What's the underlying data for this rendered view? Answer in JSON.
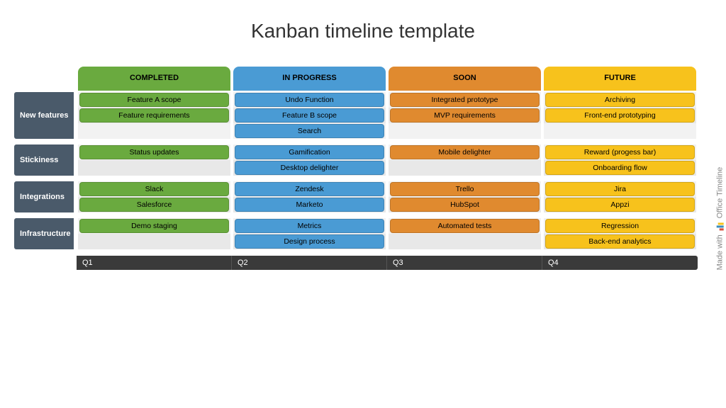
{
  "title": "Kanban timeline template",
  "colors": {
    "completed": "#6aaa3f",
    "in_progress": "#4a9bd4",
    "soon": "#e08a2f",
    "future": "#f7c21c",
    "row_label_bg": "#4a5a6a",
    "row_label_fg": "#ffffff",
    "stripe_even": "#f2f2f2",
    "stripe_odd": "#e8e8e8",
    "quarter_bg": "#3a3a3a",
    "quarter_fg": "#ffffff",
    "page_bg": "#ffffff",
    "title_color": "#333333",
    "task_text": "#000000"
  },
  "typography": {
    "title_fontsize": 28,
    "header_fontsize": 11,
    "row_label_fontsize": 11,
    "task_fontsize": 10.5,
    "quarter_fontsize": 11
  },
  "columns": [
    {
      "key": "completed",
      "label": "COMPLETED"
    },
    {
      "key": "in_progress",
      "label": "IN PROGRESS"
    },
    {
      "key": "soon",
      "label": "SOON"
    },
    {
      "key": "future",
      "label": "FUTURE"
    }
  ],
  "rows": [
    {
      "label": "New features",
      "sublines": 3,
      "cells": {
        "completed": [
          "Feature A scope",
          "Feature requirements"
        ],
        "in_progress": [
          "Undo Function",
          "Feature B scope",
          "Search"
        ],
        "soon": [
          "Integrated prototype",
          "MVP requirements"
        ],
        "future": [
          "Archiving",
          "Front-end prototyping"
        ]
      }
    },
    {
      "label": "Stickiness",
      "sublines": 2,
      "cells": {
        "completed": [
          "Status updates"
        ],
        "in_progress": [
          "Gamification",
          "Desktop delighter"
        ],
        "soon": [
          "Mobile delighter"
        ],
        "future": [
          "Reward (progess bar)",
          "Onboarding flow"
        ]
      }
    },
    {
      "label": "Integrations",
      "sublines": 2,
      "cells": {
        "completed": [
          "Slack",
          "Salesforce"
        ],
        "in_progress": [
          "Zendesk",
          "Marketo"
        ],
        "soon": [
          "Trello",
          "HubSpot"
        ],
        "future": [
          "Jira",
          "Appzi"
        ]
      }
    },
    {
      "label": "Infrastructure",
      "sublines": 2,
      "cells": {
        "completed": [
          "Demo staging"
        ],
        "in_progress": [
          "Metrics",
          "Design process"
        ],
        "soon": [
          "Automated tests"
        ],
        "future": [
          "Regression",
          "Back-end analytics"
        ]
      }
    }
  ],
  "quarters": [
    "Q1",
    "Q2",
    "Q3",
    "Q4"
  ],
  "watermark": {
    "prefix": "Made with",
    "brand": "Office Timeline",
    "icon_colors": [
      "#d94f3d",
      "#3c8dbc",
      "#f7c21c"
    ]
  }
}
